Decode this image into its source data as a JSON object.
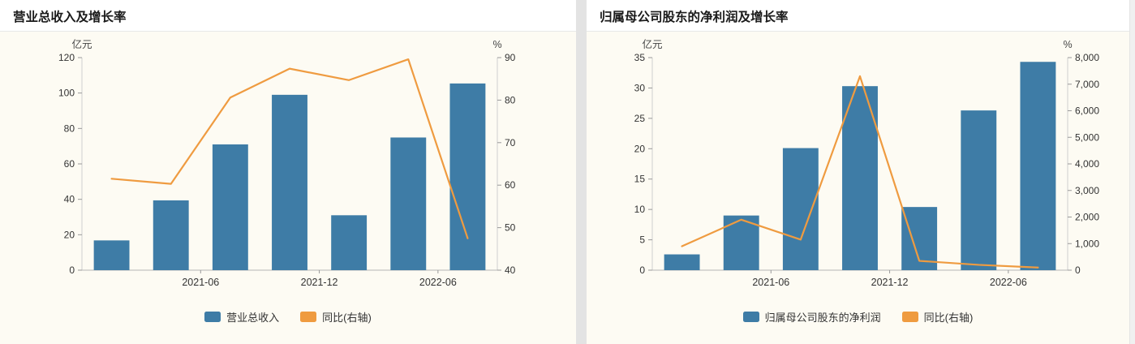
{
  "page": {
    "background": "#ffffff",
    "panel_background": "#fdfbf3",
    "divider_color": "#e3e3e3"
  },
  "chart_data": [
    {
      "type": "bar",
      "subtype": "bar+line-dual-axis",
      "title": "营业总收入及增长率",
      "left_axis": {
        "unit": "亿元",
        "min": 0,
        "max": 120,
        "step": 20
      },
      "right_axis": {
        "unit": "%",
        "min": 40,
        "max": 90,
        "step": 10
      },
      "x_ticks": [
        {
          "label": "2021-06",
          "index": 2
        },
        {
          "label": "2021-12",
          "index": 4
        },
        {
          "label": "2022-06",
          "index": 6
        }
      ],
      "series": [
        {
          "name": "营业总收入",
          "type": "bar",
          "axis": "left",
          "color": "#3e7ca6",
          "values": [
            16.8,
            39.4,
            71.0,
            99.0,
            31.0,
            74.9,
            105.4
          ]
        },
        {
          "name": "同比(右轴)",
          "type": "line",
          "axis": "right",
          "color": "#ef9b40",
          "values": [
            61.5,
            60.3,
            80.6,
            87.4,
            84.7,
            89.6,
            47.5
          ]
        }
      ],
      "legend_position": "bottom",
      "grid": false
    },
    {
      "type": "bar",
      "subtype": "bar+line-dual-axis",
      "title": "归属母公司股东的净利润及增长率",
      "left_axis": {
        "unit": "亿元",
        "min": 0,
        "max": 35,
        "step": 5
      },
      "right_axis": {
        "unit": "%",
        "min": 0,
        "max": 8000,
        "step": 1000
      },
      "x_ticks": [
        {
          "label": "2021-06",
          "index": 2
        },
        {
          "label": "2021-12",
          "index": 4
        },
        {
          "label": "2022-06",
          "index": 6
        }
      ],
      "series": [
        {
          "name": "归属母公司股东的净利润",
          "type": "bar",
          "axis": "left",
          "color": "#3e7ca6",
          "values": [
            2.6,
            9.0,
            20.1,
            30.3,
            10.4,
            26.3,
            34.3
          ]
        },
        {
          "name": "同比(右轴)",
          "type": "line",
          "axis": "right",
          "color": "#ef9b40",
          "values": [
            900,
            1900,
            1150,
            7300,
            350,
            200,
            100
          ]
        }
      ],
      "legend_position": "bottom",
      "grid": false
    }
  ]
}
